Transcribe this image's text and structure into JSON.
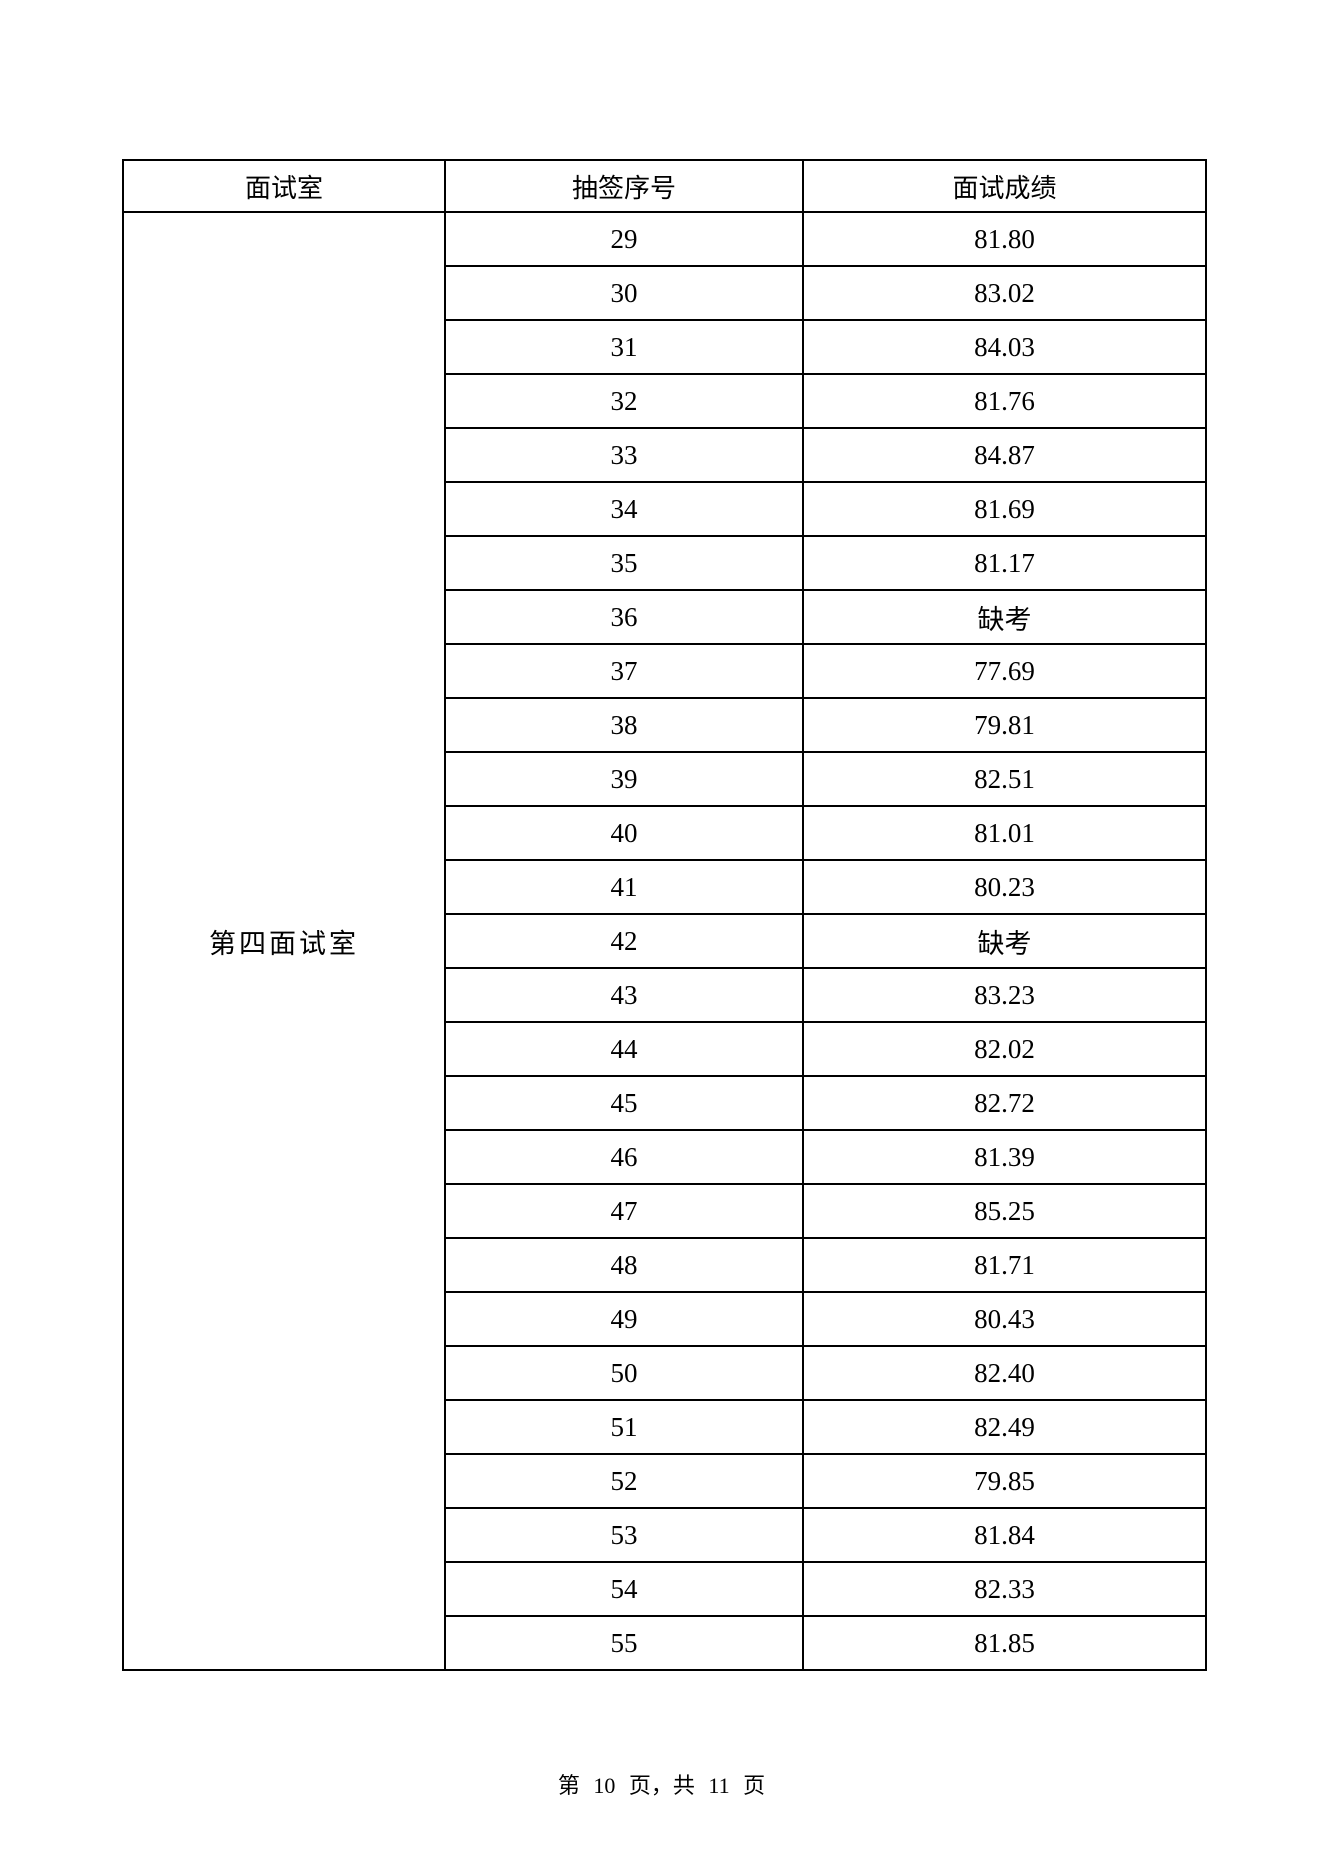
{
  "table": {
    "headers": [
      "面试室",
      "抽签序号",
      "面试成绩"
    ],
    "room": "第四面试室",
    "rows": [
      {
        "no": "29",
        "score": "81.80"
      },
      {
        "no": "30",
        "score": "83.02"
      },
      {
        "no": "31",
        "score": "84.03"
      },
      {
        "no": "32",
        "score": "81.76"
      },
      {
        "no": "33",
        "score": "84.87"
      },
      {
        "no": "34",
        "score": "81.69"
      },
      {
        "no": "35",
        "score": "81.17"
      },
      {
        "no": "36",
        "score": "缺考"
      },
      {
        "no": "37",
        "score": "77.69"
      },
      {
        "no": "38",
        "score": "79.81"
      },
      {
        "no": "39",
        "score": "82.51"
      },
      {
        "no": "40",
        "score": "81.01"
      },
      {
        "no": "41",
        "score": "80.23"
      },
      {
        "no": "42",
        "score": "缺考"
      },
      {
        "no": "43",
        "score": "83.23"
      },
      {
        "no": "44",
        "score": "82.02"
      },
      {
        "no": "45",
        "score": "82.72"
      },
      {
        "no": "46",
        "score": "81.39"
      },
      {
        "no": "47",
        "score": "85.25"
      },
      {
        "no": "48",
        "score": "81.71"
      },
      {
        "no": "49",
        "score": "80.43"
      },
      {
        "no": "50",
        "score": "82.40"
      },
      {
        "no": "51",
        "score": "82.49"
      },
      {
        "no": "52",
        "score": "79.85"
      },
      {
        "no": "53",
        "score": "81.84"
      },
      {
        "no": "54",
        "score": "82.33"
      },
      {
        "no": "55",
        "score": "81.85"
      }
    ]
  },
  "footer": "第 10 页，共 11 页"
}
